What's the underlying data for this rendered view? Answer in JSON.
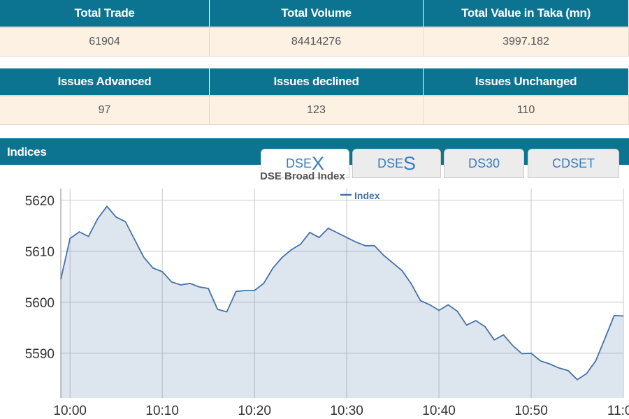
{
  "summary_table": {
    "headers": [
      "Total Trade",
      "Total Volume",
      "Total Value in Taka (mn)"
    ],
    "values": [
      61904,
      84414276,
      3997.182
    ]
  },
  "issues_table": {
    "headers": [
      "Issues Advanced",
      "Issues declined",
      "Issues Unchanged"
    ],
    "values": [
      97,
      123,
      110
    ]
  },
  "indices": {
    "title": "Indices",
    "tabs": [
      {
        "prefix": "DSE",
        "suffix": "X"
      },
      {
        "prefix": "DSE",
        "suffix": "S"
      },
      {
        "label": "DS30"
      },
      {
        "label": "CDSET"
      }
    ]
  },
  "chart_data": {
    "type": "area",
    "title": "DSE Broad Index",
    "x": [
      "9:59",
      "10:00",
      "10:01",
      "10:02",
      "10:03",
      "10:04",
      "10:05",
      "10:06",
      "10:07",
      "10:08",
      "10:09",
      "10:10",
      "10:11",
      "10:12",
      "10:13",
      "10:14",
      "10:15",
      "10:16",
      "10:17",
      "10:18",
      "10:19",
      "10:20",
      "10:21",
      "10:22",
      "10:23",
      "10:24",
      "10:25",
      "10:26",
      "10:27",
      "10:28",
      "10:29",
      "10:30",
      "10:31",
      "10:32",
      "10:33",
      "10:34",
      "10:35",
      "10:36",
      "10:37",
      "10:38",
      "10:39",
      "10:40",
      "10:41",
      "10:42",
      "10:43",
      "10:44",
      "10:45",
      "10:46",
      "10:47",
      "10:48",
      "10:49",
      "10:50",
      "10:51",
      "10:52",
      "10:53",
      "10:54",
      "10:55",
      "10:56",
      "10:57",
      "10:58",
      "10:59",
      "11:00"
    ],
    "series": [
      {
        "name": "Index",
        "color": "#4572a7",
        "values": [
          5604.5,
          5612.5,
          5613.8,
          5612.9,
          5616.4,
          5618.8,
          5616.7,
          5615.8,
          5612.3,
          5608.8,
          5606.7,
          5606.0,
          5604.0,
          5603.4,
          5603.7,
          5603.0,
          5602.7,
          5598.6,
          5598.1,
          5602.1,
          5602.3,
          5602.3,
          5603.7,
          5606.7,
          5608.8,
          5610.3,
          5611.4,
          5613.7,
          5612.7,
          5614.5,
          5613.6,
          5612.7,
          5611.8,
          5611.1,
          5611.1,
          5609.2,
          5607.7,
          5606.2,
          5603.6,
          5600.3,
          5599.5,
          5598.4,
          5599.5,
          5598.2,
          5595.5,
          5596.4,
          5595.2,
          5592.6,
          5593.6,
          5591.5,
          5589.9,
          5590.0,
          5588.5,
          5587.9,
          5587.1,
          5586.6,
          5584.8,
          5586.0,
          5588.5,
          5592.9,
          5597.4,
          5597.3
        ]
      }
    ],
    "xlim": [
      "9:59",
      "11:00"
    ],
    "xticks": [
      "10:00",
      "10:10",
      "10:20",
      "10:30",
      "10:40",
      "10:50",
      "11:00"
    ],
    "ylim": [
      5581.2,
      5622.3
    ],
    "yticks": [
      5590,
      5600,
      5610,
      5620
    ],
    "grid": true,
    "legend": "top"
  }
}
